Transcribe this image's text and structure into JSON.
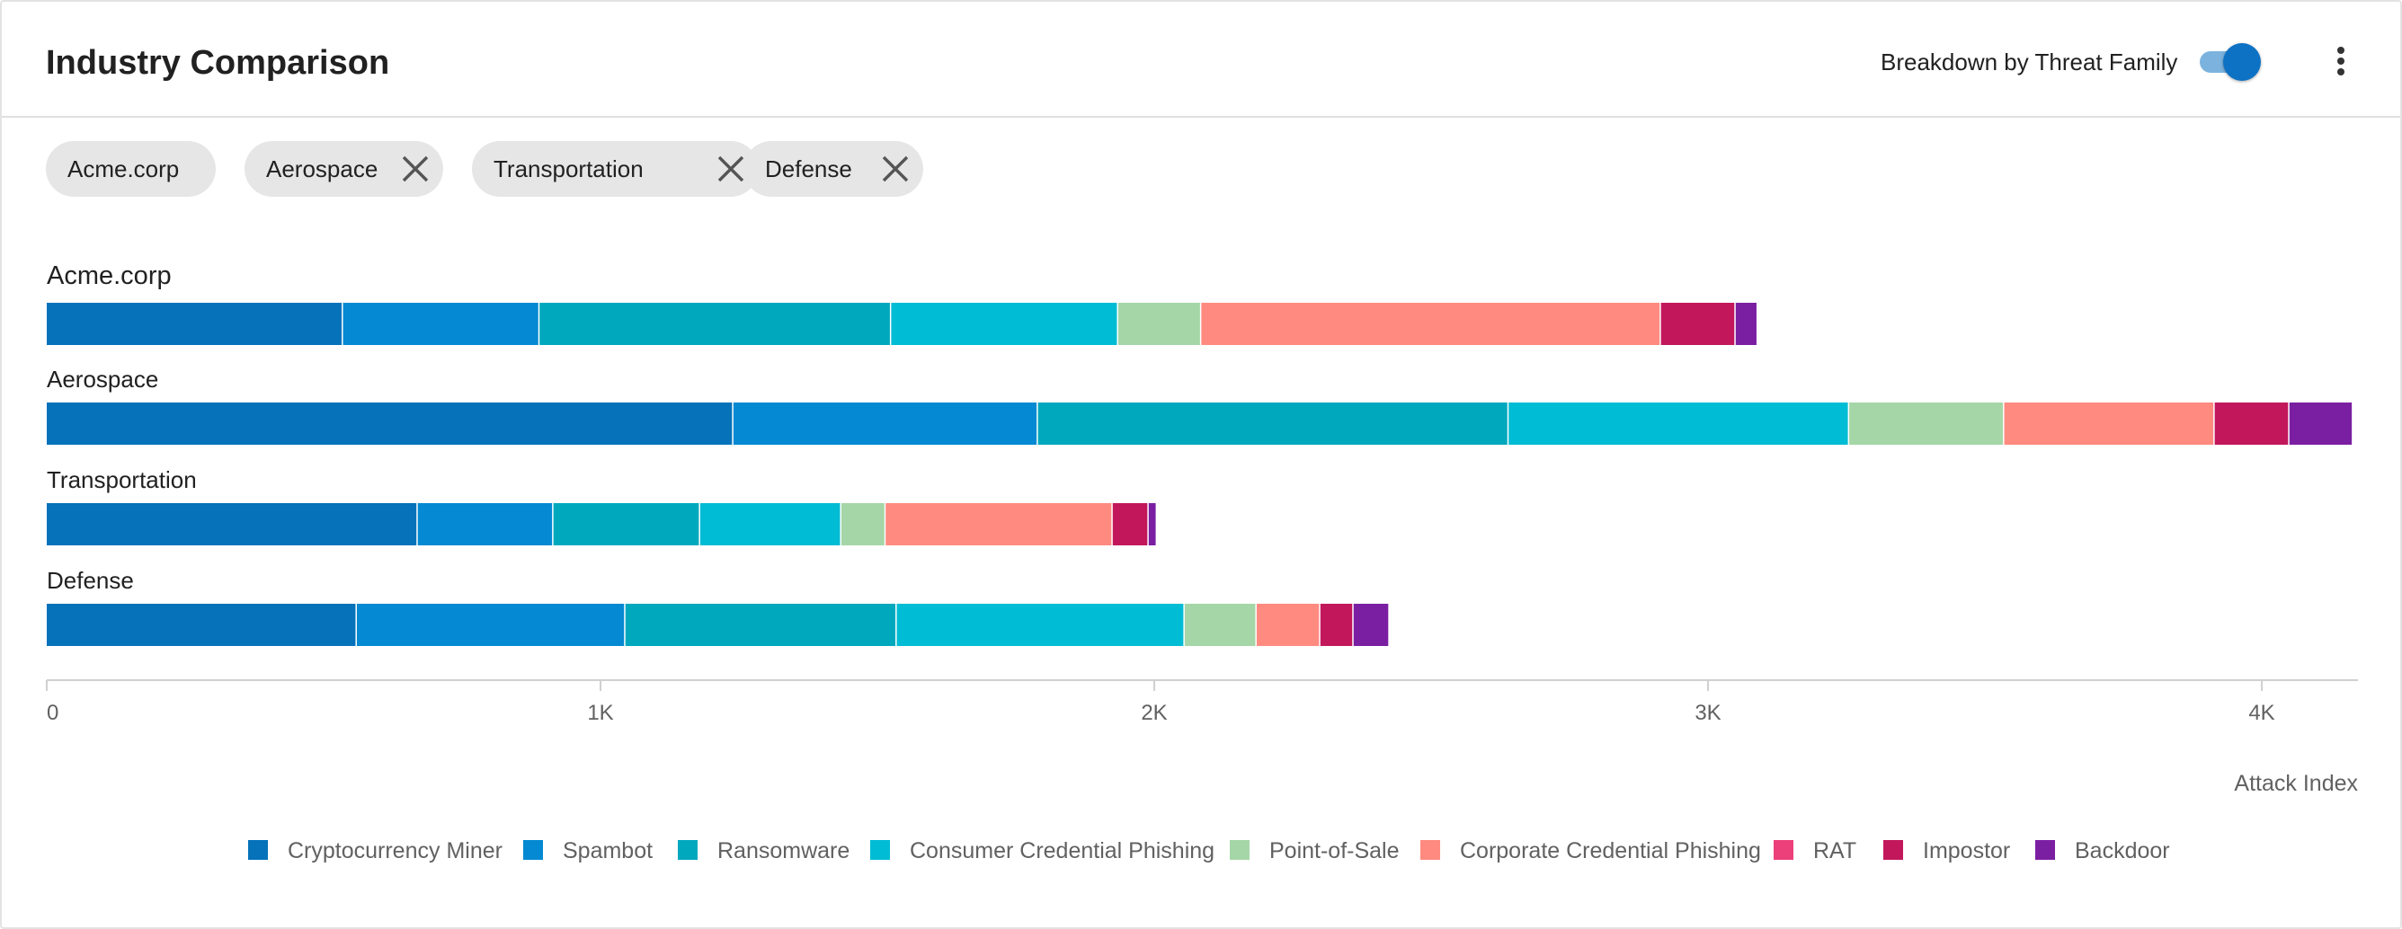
{
  "header": {
    "title": "Industry Comparison",
    "toggle_label": "Breakdown by Threat Family",
    "toggle_on": true
  },
  "chips": [
    {
      "label": "Acme.corp",
      "removable": false
    },
    {
      "label": "Aerospace",
      "removable": true
    },
    {
      "label": "Transportation",
      "removable": true
    },
    {
      "label": "Defense",
      "removable": true
    }
  ],
  "chart_data": {
    "type": "bar",
    "orientation": "horizontal",
    "stacked": true,
    "categories": [
      "Acme.corp",
      "Aerospace",
      "Transportation",
      "Defense"
    ],
    "series": [
      {
        "name": "Cryptocurrency Miner",
        "color": "#0572ba",
        "values": [
          535,
          1240,
          670,
          560
        ]
      },
      {
        "name": "Spambot",
        "color": "#0489d2",
        "values": [
          355,
          550,
          245,
          485
        ]
      },
      {
        "name": "Ransomware",
        "color": "#00a8be",
        "values": [
          635,
          850,
          265,
          490
        ]
      },
      {
        "name": "Consumer Credential Phishing",
        "color": "#00bcd4",
        "values": [
          410,
          615,
          255,
          520
        ]
      },
      {
        "name": "Point-of-Sale",
        "color": "#a5d6a7",
        "values": [
          150,
          280,
          80,
          130
        ]
      },
      {
        "name": "Corporate Credential Phishing",
        "color": "#ff8a80",
        "values": [
          830,
          380,
          410,
          115
        ]
      },
      {
        "name": "RAT",
        "color": "#ec407a",
        "values": [
          0,
          0,
          0,
          0
        ]
      },
      {
        "name": "Impostor",
        "color": "#c2185b",
        "values": [
          135,
          135,
          65,
          60
        ]
      },
      {
        "name": "Backdoor",
        "color": "#7b1fa2",
        "values": [
          40,
          115,
          15,
          65
        ]
      }
    ],
    "xaxis": {
      "min": 0,
      "max": 4170,
      "ticks": [
        0,
        1000,
        2000,
        3000,
        4000
      ],
      "tick_labels": [
        "0",
        "1K",
        "2K",
        "3K",
        "4K"
      ],
      "label": "Attack Index"
    },
    "legend_position": "bottom",
    "grid": false
  }
}
